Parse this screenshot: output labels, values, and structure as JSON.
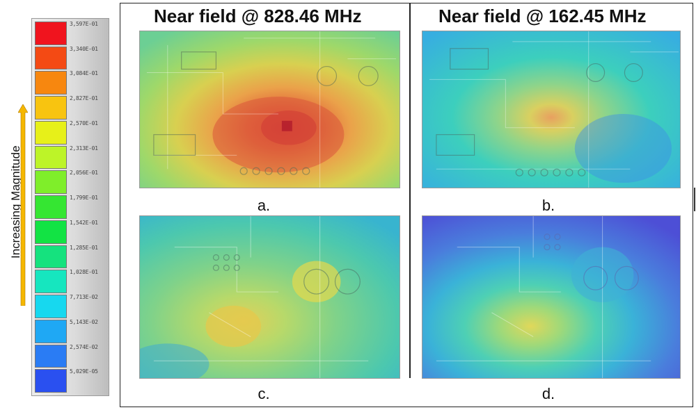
{
  "legend": {
    "side_label": "Increasing Magnitude",
    "arrow_color": "#f5b700",
    "entries": [
      {
        "value": "3,597E-01",
        "color": "#f0141e"
      },
      {
        "value": "3,340E-01",
        "color": "#f44a14"
      },
      {
        "value": "3,084E-01",
        "color": "#f7870f"
      },
      {
        "value": "2,827E-01",
        "color": "#f8c410"
      },
      {
        "value": "2,570E-01",
        "color": "#e7f019"
      },
      {
        "value": "2,313E-01",
        "color": "#bdf428"
      },
      {
        "value": "2,056E-01",
        "color": "#7fee2a"
      },
      {
        "value": "1,799E-01",
        "color": "#35e632"
      },
      {
        "value": "1,542E-01",
        "color": "#12e344"
      },
      {
        "value": "1,285E-01",
        "color": "#15e27e"
      },
      {
        "value": "1,028E-01",
        "color": "#16e6bf"
      },
      {
        "value": "7,713E-02",
        "color": "#17d8ef"
      },
      {
        "value": "5,143E-02",
        "color": "#1fa8f4"
      },
      {
        "value": "2,574E-02",
        "color": "#2a7cf4"
      },
      {
        "value": "5,029E-05",
        "color": "#2a50f0"
      }
    ]
  },
  "titles": {
    "left": "Near field @ 828.46 MHz",
    "right": "Near field @ 162.45 MHz"
  },
  "panels": {
    "a": {
      "caption": "a."
    },
    "b": {
      "caption": "b."
    },
    "c": {
      "caption": "c."
    },
    "d": {
      "caption": "d."
    }
  }
}
